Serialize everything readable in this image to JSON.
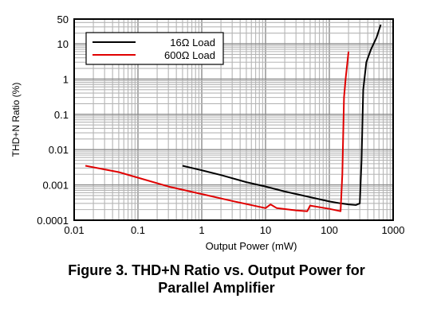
{
  "chart_data": {
    "type": "line",
    "title": "",
    "xlabel": "Output Power (mW)",
    "ylabel": "THD+N Ratio (%)",
    "xscale": "log",
    "yscale": "log",
    "xlim": [
      0.01,
      1000
    ],
    "ylim": [
      0.0001,
      50
    ],
    "grid": true,
    "legend": "top-left",
    "x_ticks": [
      "0.01",
      "0.1",
      "1",
      "10",
      "100",
      "1000"
    ],
    "x_tick_values": [
      0.01,
      0.1,
      1,
      10,
      100,
      1000
    ],
    "y_ticks": [
      "50",
      "10",
      "1",
      "0.1",
      "0.01",
      "0.001",
      "0.0001"
    ],
    "y_tick_values": [
      50,
      10,
      1,
      0.1,
      0.01,
      0.001,
      0.0001
    ],
    "series": [
      {
        "name": "16Ω Load",
        "color": "#000000",
        "x": [
          0.5,
          1,
          2,
          5,
          10,
          20,
          50,
          100,
          150,
          200,
          260,
          300,
          320,
          340,
          380,
          450,
          550,
          640
        ],
        "y": [
          0.0035,
          0.0026,
          0.0019,
          0.0012,
          0.0009,
          0.00065,
          0.00045,
          0.00034,
          0.0003,
          0.00028,
          0.00027,
          0.0003,
          0.005,
          0.5,
          3,
          7,
          15,
          35
        ]
      },
      {
        "name": "600Ω Load",
        "color": "#e00000",
        "x": [
          0.015,
          0.05,
          0.1,
          0.3,
          1,
          3,
          10,
          12,
          15,
          30,
          45,
          50,
          100,
          150,
          160,
          170,
          180,
          200
        ],
        "y": [
          0.0035,
          0.0023,
          0.0016,
          0.0009,
          0.00055,
          0.00035,
          0.00022,
          0.00028,
          0.00022,
          0.00019,
          0.00018,
          0.00026,
          0.00021,
          0.00018,
          0.002,
          0.3,
          1,
          6
        ]
      }
    ]
  },
  "caption": {
    "line1": "Figure 3. THD+N Ratio vs. Output Power for",
    "line2": "Parallel Amplifier"
  }
}
